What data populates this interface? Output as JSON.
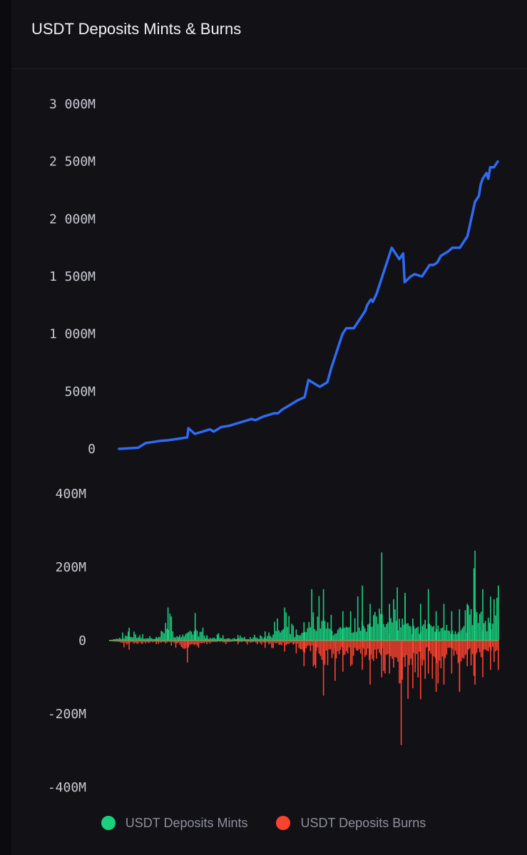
{
  "title": "USDT Deposits Mints & Burns",
  "colors": {
    "background": "#111116",
    "line": "#2f6bf5",
    "mints": "#19d07e",
    "burns": "#f9432f"
  },
  "legend": [
    {
      "label": "USDT Deposits Mints",
      "color": "#19d07e"
    },
    {
      "label": "USDT Deposits Burns",
      "color": "#f9432f"
    }
  ],
  "chart_data": [
    {
      "type": "line",
      "title": "",
      "xlabel": "",
      "ylabel": "",
      "ylim": [
        0,
        3000
      ],
      "y_tick_labels": [
        "3 000M",
        "2 500M",
        "2 000M",
        "1 500M",
        "1 000M",
        "500M",
        "0"
      ],
      "y_tick_values": [
        3000,
        2500,
        2000,
        1500,
        1000,
        500,
        0
      ],
      "grid": false,
      "series": [
        {
          "color": "#2f6bf5",
          "x": [
            0,
            5,
            7,
            9,
            11,
            13,
            16,
            18,
            18.3,
            20,
            22,
            24,
            25,
            27,
            29,
            31,
            33,
            35,
            36,
            38,
            40,
            41,
            42,
            43,
            45,
            47,
            49,
            50,
            52,
            53,
            54,
            55,
            56,
            57,
            58,
            59,
            60,
            62,
            64,
            65,
            65.5,
            66.5,
            67,
            68,
            69,
            70,
            72,
            73,
            74,
            75,
            75.4,
            77,
            78,
            80,
            81,
            82,
            83,
            84,
            85,
            86,
            87,
            88,
            90,
            91,
            92,
            93,
            94,
            95,
            95.5,
            96,
            97,
            97.5,
            98,
            99,
            100
          ],
          "values": [
            0,
            10,
            50,
            60,
            70,
            75,
            90,
            100,
            180,
            130,
            150,
            170,
            150,
            190,
            200,
            220,
            240,
            260,
            250,
            280,
            300,
            310,
            310,
            340,
            380,
            420,
            450,
            600,
            560,
            540,
            560,
            580,
            700,
            800,
            900,
            1000,
            1050,
            1050,
            1150,
            1200,
            1250,
            1300,
            1280,
            1350,
            1450,
            1550,
            1750,
            1700,
            1650,
            1700,
            1450,
            1500,
            1520,
            1500,
            1550,
            1600,
            1600,
            1620,
            1680,
            1700,
            1720,
            1750,
            1750,
            1800,
            1850,
            2000,
            2150,
            2200,
            2300,
            2350,
            2400,
            2350,
            2450,
            2450,
            2500
          ]
        }
      ]
    },
    {
      "type": "bar",
      "title": "",
      "xlabel": "",
      "ylabel": "",
      "ylim": [
        -400,
        400
      ],
      "y_tick_labels": [
        "400M",
        "200M",
        "0",
        "-200M",
        "-400M"
      ],
      "y_tick_values": [
        400,
        200,
        0,
        -200,
        -400
      ],
      "grid": false,
      "series": [
        {
          "name": "USDT Deposits Mints",
          "color": "#19d07e",
          "x": [
            0,
            5,
            12,
            15,
            18,
            22,
            25,
            28,
            33,
            40,
            45,
            48,
            50,
            52,
            55,
            57,
            60,
            62,
            65,
            67,
            70,
            72,
            74,
            76,
            78,
            80,
            82,
            84,
            86,
            88,
            90,
            92,
            94,
            96,
            98,
            100
          ],
          "values": [
            2,
            35,
            10,
            90,
            15,
            75,
            15,
            20,
            15,
            25,
            90,
            30,
            50,
            140,
            140,
            70,
            80,
            80,
            150,
            100,
            240,
            100,
            145,
            130,
            60,
            100,
            140,
            80,
            100,
            80,
            85,
            100,
            245,
            140,
            120,
            150
          ]
        },
        {
          "name": "USDT Deposits Burns",
          "color": "#f9432f",
          "x": [
            0,
            5,
            12,
            17,
            20,
            25,
            33,
            40,
            45,
            48,
            50,
            53,
            55,
            58,
            60,
            62,
            65,
            67,
            70,
            72,
            75,
            78,
            80,
            82,
            84,
            86,
            88,
            90,
            92,
            94,
            96,
            98,
            100
          ],
          "values": [
            -2,
            -25,
            -10,
            -20,
            -60,
            -10,
            -10,
            -20,
            -30,
            -35,
            -70,
            -75,
            -150,
            -110,
            -85,
            -70,
            -80,
            -120,
            -100,
            -90,
            -285,
            -130,
            -160,
            -90,
            -140,
            -120,
            -90,
            -140,
            -70,
            -120,
            -100,
            -80,
            -80
          ]
        }
      ]
    }
  ]
}
